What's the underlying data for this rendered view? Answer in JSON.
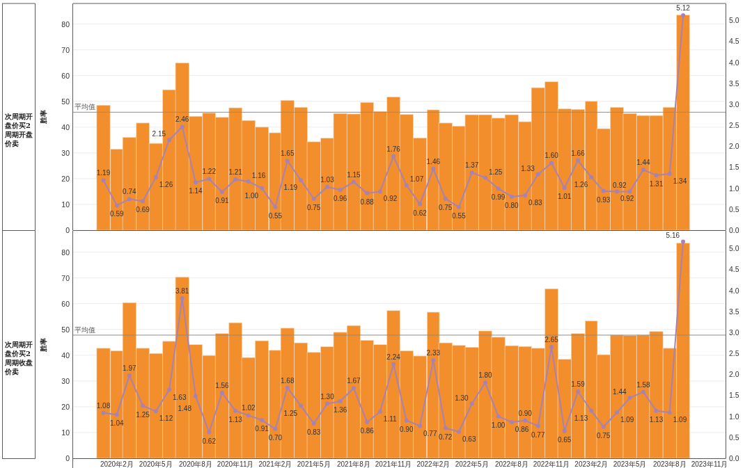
{
  "chart_data": [
    {
      "type": "bar",
      "title": "次周期开盘价买2周期开盘价卖",
      "ylabel": "胜率",
      "x": [
        "2020-01",
        "2020-02",
        "2020-03",
        "2020-04",
        "2020-05",
        "2020-06",
        "2020-07",
        "2020-08",
        "2020-09",
        "2020-10",
        "2020-11",
        "2020-12",
        "2021-01",
        "2021-02",
        "2021-03",
        "2021-04",
        "2021-05",
        "2021-06",
        "2021-07",
        "2021-08",
        "2021-09",
        "2021-10",
        "2021-11",
        "2021-12",
        "2022-01",
        "2022-02",
        "2022-03",
        "2022-04",
        "2022-05",
        "2022-06",
        "2022-07",
        "2022-08",
        "2022-09",
        "2022-10",
        "2022-11",
        "2022-12",
        "2023-01",
        "2023-02",
        "2023-03",
        "2023-04",
        "2023-05",
        "2023-06",
        "2023-07",
        "2023-08",
        "2023-09"
      ],
      "xlim": [
        "2019-10-23",
        "2023-12-08"
      ],
      "ylim": [
        0,
        88
      ],
      "yticks": [
        0,
        10,
        20,
        30,
        40,
        50,
        60,
        70,
        80
      ],
      "y2lim": [
        0,
        5.4
      ],
      "y2ticks": [
        {
          "value": 0,
          "label": "0.0"
        },
        0.5,
        {
          "value": 1,
          "label": "1.0"
        },
        1.5,
        {
          "value": 2,
          "label": "2.0"
        },
        2.5,
        {
          "value": 3,
          "label": "3.0"
        },
        3.5,
        {
          "value": 4,
          "label": "4.0"
        },
        4.5,
        {
          "value": 5,
          "label": "5.0"
        }
      ],
      "series": [
        {
          "color": "#f28e2b",
          "values": [
            48.5,
            31.4,
            36.0,
            41.6,
            33.7,
            54.5,
            64.9,
            44.2,
            45.5,
            43.8,
            47.5,
            42.6,
            40.0,
            37.8,
            50.4,
            47.7,
            34.3,
            35.7,
            45.3,
            45.1,
            49.6,
            46.1,
            51.7,
            44.9,
            35.8,
            46.7,
            41.6,
            40.4,
            44.8,
            44.8,
            43.5,
            44.8,
            42.1,
            55.3,
            57.6,
            47.1,
            46.9,
            50.0,
            39.4,
            47.7,
            45.3,
            44.5,
            44.5,
            47.7,
            83.5
          ]
        },
        {
          "type": "line",
          "axis": "y2",
          "color": "#a782b5",
          "values": [
            1.19,
            0.59,
            0.74,
            0.69,
            1.26,
            2.15,
            2.46,
            1.14,
            1.22,
            0.91,
            1.21,
            1.16,
            1.0,
            0.55,
            1.65,
            1.19,
            0.75,
            1.03,
            0.96,
            1.15,
            0.88,
            0.92,
            1.76,
            1.07,
            0.62,
            1.46,
            0.75,
            0.55,
            1.37,
            1.25,
            0.99,
            0.8,
            0.83,
            1.33,
            1.6,
            1.01,
            1.66,
            1.26,
            0.93,
            0.92,
            0.92,
            1.44,
            1.31,
            1.34,
            5.12
          ],
          "value_labels": [
            "1.19",
            "0.59",
            "0.74",
            "0.69",
            "1.26",
            "2.15",
            "2.46",
            "1.14",
            "1.22",
            "0.91",
            "1.21",
            "1.16",
            "1.00",
            "0.55",
            "1.65",
            "1.19",
            "0.75",
            "1.03",
            "0.96",
            "1.15",
            "0.88",
            "0.92",
            "1.76",
            "1.07",
            "0.62",
            "1.46",
            "0.75",
            "0.55",
            "1.37",
            "1.25",
            "0.99",
            "0.80",
            "0.83",
            "1.33",
            "1.60",
            "1.01",
            "1.66",
            "1.26",
            "0.93",
            "0.92",
            "0.92",
            "1.44",
            "1.31",
            "1.34",
            "5.12"
          ]
        }
      ],
      "ref_lines": [
        {
          "axis": "y",
          "value": 45.8,
          "label": "平均值",
          "color": "#8c8c8c"
        }
      ],
      "grid": "y",
      "marker": "circle",
      "tick_labels": "y"
    },
    {
      "type": "bar",
      "title": "次周期开盘价买2周期收盘价卖",
      "ylabel": "胜率",
      "x": [
        "2020-01",
        "2020-02",
        "2020-03",
        "2020-04",
        "2020-05",
        "2020-06",
        "2020-07",
        "2020-08",
        "2020-09",
        "2020-10",
        "2020-11",
        "2020-12",
        "2021-01",
        "2021-02",
        "2021-03",
        "2021-04",
        "2021-05",
        "2021-06",
        "2021-07",
        "2021-08",
        "2021-09",
        "2021-10",
        "2021-11",
        "2021-12",
        "2022-01",
        "2022-02",
        "2022-03",
        "2022-04",
        "2022-05",
        "2022-06",
        "2022-07",
        "2022-08",
        "2022-09",
        "2022-10",
        "2022-11",
        "2022-12",
        "2023-01",
        "2023-02",
        "2023-03",
        "2023-04",
        "2023-05",
        "2023-06",
        "2023-07",
        "2023-08",
        "2023-09"
      ],
      "xlim": [
        "2019-10-23",
        "2023-12-08"
      ],
      "xticks": [
        {
          "value": "2020-02",
          "label": "2020年2月"
        },
        {
          "value": "2020-05",
          "label": "2020年5月"
        },
        {
          "value": "2020-08",
          "label": "2020年8月"
        },
        {
          "value": "2020-11",
          "label": "2020年11月"
        },
        {
          "value": "2021-02",
          "label": "2021年2月"
        },
        {
          "value": "2021-05",
          "label": "2021年5月"
        },
        {
          "value": "2021-08",
          "label": "2021年8月"
        },
        {
          "value": "2021-11",
          "label": "2021年11月"
        },
        {
          "value": "2022-02",
          "label": "2022年2月"
        },
        {
          "value": "2022-05",
          "label": "2022年5月"
        },
        {
          "value": "2022-08",
          "label": "2022年8月"
        },
        {
          "value": "2022-11",
          "label": "2022年11月"
        },
        {
          "value": "2023-02",
          "label": "2023年2月"
        },
        {
          "value": "2023-05",
          "label": "2023年5月"
        },
        {
          "value": "2023-08",
          "label": "2023年8月"
        },
        {
          "value": "2023-11",
          "label": "2023年11月"
        }
      ],
      "ylim": [
        0,
        88
      ],
      "yticks": [
        0,
        10,
        20,
        30,
        40,
        50,
        60,
        70,
        80
      ],
      "y2lim": [
        0,
        5.4
      ],
      "y2ticks": [
        {
          "value": 0,
          "label": "0.0"
        },
        0.5,
        {
          "value": 1,
          "label": "1.0"
        },
        1.5,
        {
          "value": 2,
          "label": "2.0"
        },
        2.5,
        {
          "value": 3,
          "label": "3.0"
        },
        3.5,
        {
          "value": 4,
          "label": "4.0"
        },
        4.5,
        {
          "value": 5,
          "label": "5.0"
        }
      ],
      "series": [
        {
          "color": "#f28e2b",
          "values": [
            42.7,
            41.7,
            60.4,
            42.7,
            40.7,
            45.4,
            70.3,
            44.1,
            39.9,
            48.4,
            52.6,
            39.1,
            45.6,
            41.9,
            50.5,
            44.8,
            41.1,
            43.3,
            48.9,
            51.5,
            45.8,
            44.1,
            57.3,
            41.7,
            39.7,
            56.7,
            44.8,
            43.8,
            43.1,
            49.4,
            47.0,
            43.7,
            43.4,
            42.7,
            65.8,
            38.4,
            48.4,
            53.3,
            40.2,
            47.8,
            47.6,
            47.8,
            49.2,
            42.7,
            83.5
          ]
        },
        {
          "type": "line",
          "axis": "y2",
          "color": "#a782b5",
          "values": [
            1.08,
            1.04,
            1.97,
            1.25,
            1.12,
            1.63,
            3.81,
            1.48,
            0.62,
            1.56,
            1.13,
            1.02,
            0.91,
            0.7,
            1.68,
            1.25,
            0.83,
            1.3,
            1.36,
            1.67,
            0.86,
            1.11,
            2.24,
            0.9,
            0.77,
            2.33,
            0.72,
            0.63,
            1.3,
            1.8,
            1.0,
            0.86,
            0.9,
            0.77,
            2.65,
            0.65,
            1.59,
            1.13,
            0.75,
            1.09,
            1.44,
            1.58,
            1.13,
            1.09,
            5.16
          ],
          "value_labels": [
            "1.08",
            "1.04",
            "1.97",
            "1.25",
            "1.12",
            "1.63",
            "3.81",
            "1.48",
            "0.62",
            "1.56",
            "1.13",
            "1.02",
            "0.91",
            "0.70",
            "1.68",
            "1.25",
            "0.83",
            "1.30",
            "1.36",
            "1.67",
            "0.86",
            "1.11",
            "2.24",
            "0.90",
            "0.77",
            "2.33",
            "0.72",
            "0.63",
            "1.30",
            "1.80",
            "1.00",
            "0.86",
            "0.90",
            "0.77",
            "2.65",
            "0.65",
            "1.59",
            "1.13",
            "0.75",
            "1.09",
            "1.44",
            "1.58",
            "1.13",
            "1.09",
            "5.16"
          ]
        }
      ],
      "ref_lines": [
        {
          "axis": "y",
          "value": 47.8,
          "label": "平均值",
          "color": "#8c8c8c"
        }
      ],
      "grid": "y",
      "marker": "circle"
    }
  ]
}
